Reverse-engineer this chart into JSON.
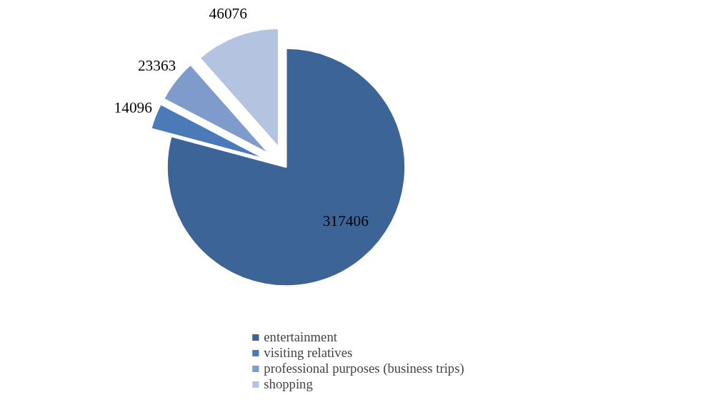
{
  "chart_data": {
    "type": "pie",
    "categories": [
      "entertainment",
      "visiting relatives",
      "professional purposes (business trips)",
      "shopping"
    ],
    "values": [
      317406,
      14096,
      23363,
      46076
    ],
    "colors": [
      "#3c6496",
      "#4a7ab8",
      "#7f9bcc",
      "#b3c3e0"
    ],
    "data_labels": true,
    "legend": "bottom"
  }
}
